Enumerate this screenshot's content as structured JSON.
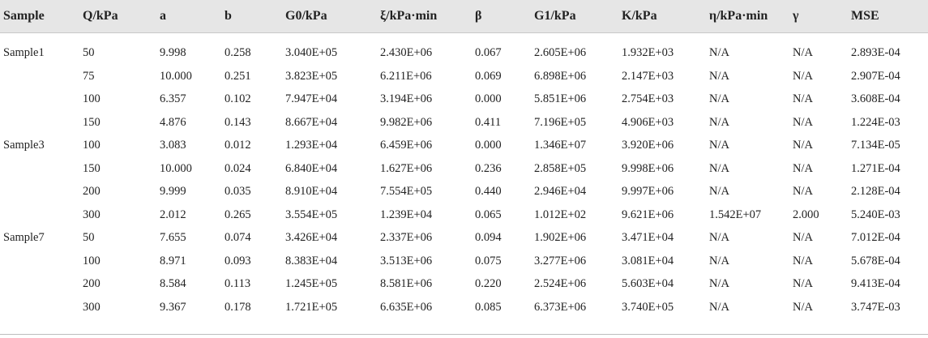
{
  "table": {
    "headers": [
      "Sample",
      "Q/kPa",
      "a",
      "b",
      "G0/kPa",
      "ξ/kPa·min",
      "β",
      "G1/kPa",
      "K/kPa",
      "η/kPa·min",
      "γ",
      "MSE"
    ],
    "groups": [
      {
        "sample": "Sample1",
        "rows": [
          [
            "50",
            "9.998",
            "0.258",
            "3.040E+05",
            "2.430E+06",
            "0.067",
            "2.605E+06",
            "1.932E+03",
            "N/A",
            "N/A",
            "2.893E-04"
          ],
          [
            "75",
            "10.000",
            "0.251",
            "3.823E+05",
            "6.211E+06",
            "0.069",
            "6.898E+06",
            "2.147E+03",
            "N/A",
            "N/A",
            "2.907E-04"
          ],
          [
            "100",
            "6.357",
            "0.102",
            "7.947E+04",
            "3.194E+06",
            "0.000",
            "5.851E+06",
            "2.754E+03",
            "N/A",
            "N/A",
            "3.608E-04"
          ],
          [
            "150",
            "4.876",
            "0.143",
            "8.667E+04",
            "9.982E+06",
            "0.411",
            "7.196E+05",
            "4.906E+03",
            "N/A",
            "N/A",
            "1.224E-03"
          ]
        ]
      },
      {
        "sample": "Sample3",
        "rows": [
          [
            "100",
            "3.083",
            "0.012",
            "1.293E+04",
            "6.459E+06",
            "0.000",
            "1.346E+07",
            "3.920E+06",
            "N/A",
            "N/A",
            "7.134E-05"
          ],
          [
            "150",
            "10.000",
            "0.024",
            "6.840E+04",
            "1.627E+06",
            "0.236",
            "2.858E+05",
            "9.998E+06",
            "N/A",
            "N/A",
            "1.271E-04"
          ],
          [
            "200",
            "9.999",
            "0.035",
            "8.910E+04",
            "7.554E+05",
            "0.440",
            "2.946E+04",
            "9.997E+06",
            "N/A",
            "N/A",
            "2.128E-04"
          ],
          [
            "300",
            "2.012",
            "0.265",
            "3.554E+05",
            "1.239E+04",
            "0.065",
            "1.012E+02",
            "9.621E+06",
            "1.542E+07",
            "2.000",
            "5.240E-03"
          ]
        ]
      },
      {
        "sample": "Sample7",
        "rows": [
          [
            "50",
            "7.655",
            "0.074",
            "3.426E+04",
            "2.337E+06",
            "0.094",
            "1.902E+06",
            "3.471E+04",
            "N/A",
            "N/A",
            "7.012E-04"
          ],
          [
            "100",
            "8.971",
            "0.093",
            "8.383E+04",
            "3.513E+06",
            "0.075",
            "3.277E+06",
            "3.081E+04",
            "N/A",
            "N/A",
            "5.678E-04"
          ],
          [
            "200",
            "8.584",
            "0.113",
            "1.245E+05",
            "8.581E+06",
            "0.220",
            "2.524E+06",
            "5.603E+04",
            "N/A",
            "N/A",
            "9.413E-04"
          ],
          [
            "300",
            "9.367",
            "0.178",
            "1.721E+05",
            "6.635E+06",
            "0.085",
            "6.373E+06",
            "3.740E+05",
            "N/A",
            "N/A",
            "3.747E-03"
          ]
        ]
      }
    ]
  }
}
